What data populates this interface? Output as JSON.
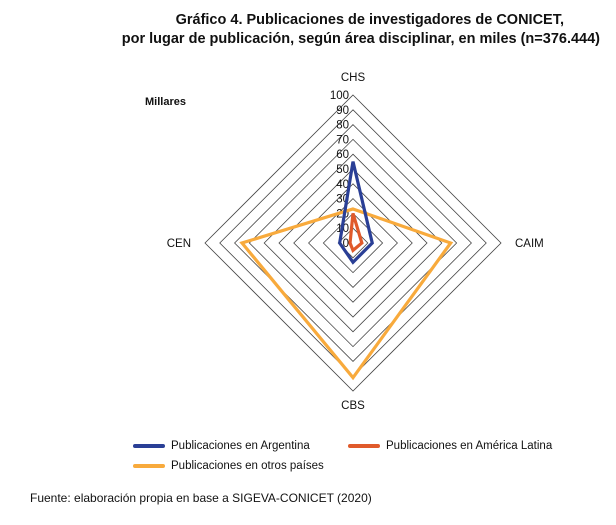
{
  "chart_data": {
    "type": "radar",
    "title": "Gráfico 4. Publicaciones de investigadores de CONICET,",
    "subtitle": "por lugar de publicación, según área disciplinar, en miles (n=376.444)",
    "ylabel": "Millares",
    "categories": [
      "CHS",
      "CAIM",
      "CBS",
      "CEN"
    ],
    "rlim": [
      0,
      100
    ],
    "ticks": [
      0,
      10,
      20,
      30,
      40,
      50,
      60,
      70,
      80,
      90,
      100
    ],
    "grid": true,
    "legend_position": "bottom",
    "series": [
      {
        "name": "Publicaciones en Argentina",
        "color": "#2a3f96",
        "values": [
          55,
          13,
          13,
          9
        ]
      },
      {
        "name": "Publicaciones en América Latina",
        "color": "#e05a2b",
        "values": [
          20,
          6,
          5,
          2
        ]
      },
      {
        "name": "Publicaciones en otros países",
        "color": "#f8aa3c",
        "values": [
          23,
          66,
          91,
          75
        ]
      }
    ]
  },
  "source": "Fuente: elaboración propia en base a SIGEVA-CONICET (2020)"
}
